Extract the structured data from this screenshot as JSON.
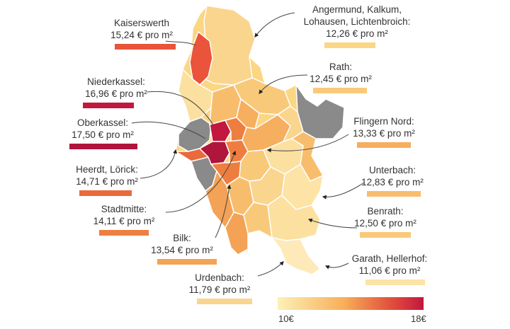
{
  "colors": {
    "scale_low": "#fdeaa6",
    "scale_mid": "#f5a24a",
    "scale_high": "#c2173f",
    "no_data": "#8a8a8a",
    "leader_line": "#444444"
  },
  "legend": {
    "min_label": "10€",
    "max_label": "18€",
    "min": 10,
    "max": 18
  },
  "districts": [
    {
      "name": "Kaiserswerth",
      "price": "15,24 € pro m²",
      "value": 15.24,
      "color": "#e9543a"
    },
    {
      "name": "Niederkassel:",
      "price": "16,96 € pro m²",
      "value": 16.96,
      "color": "#c2173f"
    },
    {
      "name": "Oberkassel:",
      "price": "17,50 € pro m²",
      "value": 17.5,
      "color": "#b0153c"
    },
    {
      "name": "Heerdt, Lörick:",
      "price": "14,71 € pro m²",
      "value": 14.71,
      "color": "#ea6a3c"
    },
    {
      "name": "Stadtmitte:",
      "price": "14,11 € pro m²",
      "value": 14.11,
      "color": "#ee7e40"
    },
    {
      "name": "Bilk:",
      "price": "13,54 € pro m²",
      "value": 13.54,
      "color": "#f4a256"
    },
    {
      "name": "Urdenbach:",
      "price": "11,79 € pro m²",
      "value": 11.79,
      "color": "#fad58e"
    },
    {
      "name": "Angermund, Kalkum, Lohausen, Lichtenbroich:",
      "price": "12,26 € pro m²",
      "value": 12.26,
      "color": "#fbd683"
    },
    {
      "name": "Rath:",
      "price": "12,45 € pro m²",
      "value": 12.45,
      "color": "#f9c97a"
    },
    {
      "name": "Flingern Nord:",
      "price": "13,33 € pro m²",
      "value": 13.33,
      "color": "#f6ae5f"
    },
    {
      "name": "Unterbach:",
      "price": "12,83 € pro m²",
      "value": 12.83,
      "color": "#f8bd6c"
    },
    {
      "name": "Benrath:",
      "price": "12,50 € pro m²",
      "value": 12.5,
      "color": "#f9c97a"
    },
    {
      "name": "Garath, Hellerhof:",
      "price": "11,06 € pro m²",
      "value": 11.06,
      "color": "#fde3a6"
    }
  ]
}
